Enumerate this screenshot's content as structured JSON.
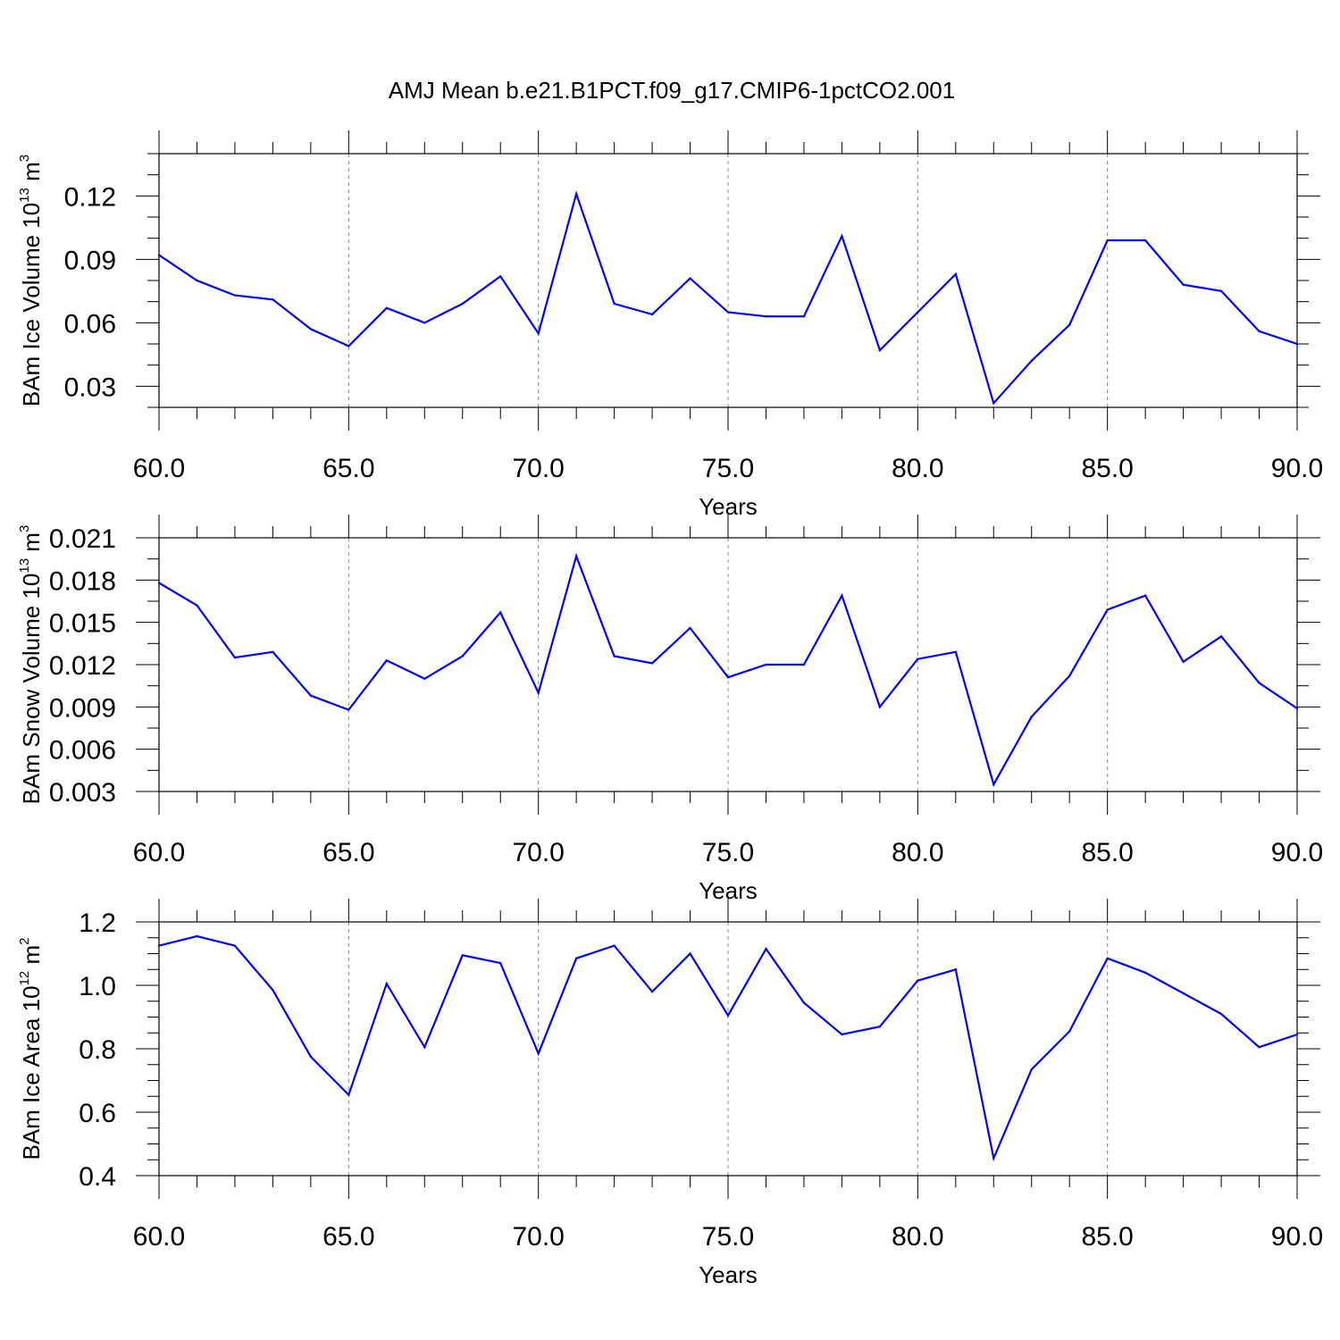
{
  "title": "AMJ Mean b.e21.B1PCT.f09_g17.CMIP6-1pctCO2.001",
  "chart_data": [
    {
      "type": "line",
      "title": "AMJ Mean b.e21.B1PCT.f09_g17.CMIP6-1pctCO2.001",
      "ylabel_main": "BAm Ice Volume 10",
      "ylabel_exp": "13",
      "ylabel_unit": " m",
      "ylabel_unit_exp": "3",
      "xlabel": "Years",
      "xlim": [
        60,
        90
      ],
      "ylim": [
        0.02,
        0.14
      ],
      "xticks": [
        60,
        65,
        70,
        75,
        80,
        85,
        90
      ],
      "xtick_labels": [
        "60.0",
        "65.0",
        "70.0",
        "75.0",
        "80.0",
        "85.0",
        "90.0"
      ],
      "yticks": [
        0.03,
        0.06,
        0.09,
        0.12
      ],
      "ytick_labels": [
        "0.03",
        "0.06",
        "0.09",
        "0.12"
      ],
      "y_minor_step": 0.01,
      "x_minor_step": 1,
      "grid": "x-dashed",
      "color": "#0000ff",
      "x": [
        60,
        61,
        62,
        63,
        64,
        65,
        66,
        67,
        68,
        69,
        70,
        71,
        72,
        73,
        74,
        75,
        76,
        77,
        78,
        79,
        80,
        81,
        82,
        83,
        84,
        85,
        86,
        87,
        88,
        89,
        90
      ],
      "values": [
        0.092,
        0.08,
        0.073,
        0.071,
        0.057,
        0.049,
        0.067,
        0.06,
        0.069,
        0.082,
        0.055,
        0.121,
        0.069,
        0.064,
        0.081,
        0.065,
        0.063,
        0.063,
        0.101,
        0.047,
        0.065,
        0.083,
        0.022,
        0.042,
        0.059,
        0.099,
        0.099,
        0.078,
        0.075,
        0.056,
        0.05
      ]
    },
    {
      "type": "line",
      "ylabel_main": "BAm Snow Volume 10",
      "ylabel_exp": "13",
      "ylabel_unit": " m",
      "ylabel_unit_exp": "3",
      "xlabel": "Years",
      "xlim": [
        60,
        90
      ],
      "ylim": [
        0.003,
        0.021
      ],
      "xticks": [
        60,
        65,
        70,
        75,
        80,
        85,
        90
      ],
      "xtick_labels": [
        "60.0",
        "65.0",
        "70.0",
        "75.0",
        "80.0",
        "85.0",
        "90.0"
      ],
      "yticks": [
        0.003,
        0.006,
        0.009,
        0.012,
        0.015,
        0.018,
        0.021
      ],
      "ytick_labels": [
        "0.003",
        "0.006",
        "0.009",
        "0.012",
        "0.015",
        "0.018",
        "0.021"
      ],
      "y_minor_step": 0.0015,
      "x_minor_step": 1,
      "grid": "x-dashed",
      "color": "#0000ff",
      "x": [
        60,
        61,
        62,
        63,
        64,
        65,
        66,
        67,
        68,
        69,
        70,
        71,
        72,
        73,
        74,
        75,
        76,
        77,
        78,
        79,
        80,
        81,
        82,
        83,
        84,
        85,
        86,
        87,
        88,
        89,
        90
      ],
      "values": [
        0.0178,
        0.0162,
        0.0125,
        0.0129,
        0.0098,
        0.0088,
        0.0123,
        0.011,
        0.0126,
        0.0157,
        0.01,
        0.0197,
        0.0126,
        0.0121,
        0.0146,
        0.0111,
        0.012,
        0.012,
        0.0169,
        0.009,
        0.0124,
        0.0129,
        0.0035,
        0.0083,
        0.0112,
        0.0159,
        0.0169,
        0.0122,
        0.014,
        0.0107,
        0.0089
      ]
    },
    {
      "type": "line",
      "ylabel_main": "BAm Ice Area 10",
      "ylabel_exp": "12",
      "ylabel_unit": " m",
      "ylabel_unit_exp": "2",
      "xlabel": "Years",
      "xlim": [
        60,
        90
      ],
      "ylim": [
        0.4,
        1.2
      ],
      "xticks": [
        60,
        65,
        70,
        75,
        80,
        85,
        90
      ],
      "xtick_labels": [
        "60.0",
        "65.0",
        "70.0",
        "75.0",
        "80.0",
        "85.0",
        "90.0"
      ],
      "yticks": [
        0.4,
        0.6,
        0.8,
        1.0,
        1.2
      ],
      "ytick_labels": [
        "0.4",
        "0.6",
        "0.8",
        "1.0",
        "1.2"
      ],
      "y_minor_step": 0.05,
      "x_minor_step": 1,
      "grid": "x-dashed",
      "color": "#0000ff",
      "x": [
        60,
        61,
        62,
        63,
        64,
        65,
        66,
        67,
        68,
        69,
        70,
        71,
        72,
        73,
        74,
        75,
        76,
        77,
        78,
        79,
        80,
        81,
        82,
        83,
        84,
        85,
        86,
        87,
        88,
        89,
        90
      ],
      "values": [
        1.125,
        1.155,
        1.125,
        0.985,
        0.775,
        0.655,
        1.005,
        0.805,
        1.095,
        1.07,
        0.785,
        1.085,
        1.125,
        0.98,
        1.1,
        0.905,
        1.115,
        0.945,
        0.845,
        0.87,
        1.015,
        1.05,
        0.455,
        0.735,
        0.855,
        1.085,
        1.04,
        0.975,
        0.91,
        0.805,
        0.845
      ]
    }
  ]
}
